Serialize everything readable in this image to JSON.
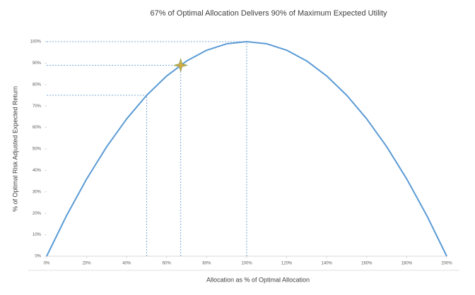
{
  "chart_data": {
    "type": "line",
    "title": "67% of Optimal Allocation Delivers 90% of Maximum Expected Utility",
    "x_label": "Allocation as % of Optimal Allocation",
    "y_label": "% of Optimal Risk Adjusted Expected Return",
    "x": [
      0,
      10,
      20,
      30,
      40,
      50,
      60,
      70,
      80,
      90,
      100,
      110,
      120,
      130,
      140,
      150,
      160,
      170,
      180,
      190,
      200
    ],
    "series": [
      {
        "color": "#5b9bd5",
        "values": [
          0,
          19,
          36,
          51,
          64,
          75,
          84,
          91,
          96,
          99,
          100,
          99,
          96,
          91,
          84,
          75,
          64,
          51,
          36,
          19,
          0
        ]
      }
    ],
    "reference_lines": [
      {
        "x": 50,
        "y": 75
      },
      {
        "x": 67,
        "y": 89
      },
      {
        "x": 100,
        "y": 100
      }
    ],
    "reference_color": "#7fa7d9",
    "highlight": {
      "x": 67,
      "y": 89,
      "color": "#d4a94a"
    },
    "xlim": [
      0,
      200
    ],
    "ylim": [
      0,
      100
    ],
    "xticks": [
      {
        "value": 0,
        "label": "0%"
      },
      {
        "value": 20,
        "label": "20%"
      },
      {
        "value": 40,
        "label": "40%"
      },
      {
        "value": 60,
        "label": "60%"
      },
      {
        "value": 80,
        "label": "80%"
      },
      {
        "value": 100,
        "label": "100%"
      },
      {
        "value": 120,
        "label": "120%"
      },
      {
        "value": 140,
        "label": "140%"
      },
      {
        "value": 160,
        "label": "160%"
      },
      {
        "value": 180,
        "label": "180%"
      },
      {
        "value": 200,
        "label": "200%"
      }
    ],
    "yticks": [
      {
        "value": 0,
        "label": "0%"
      },
      {
        "value": 10,
        "label": "10%"
      },
      {
        "value": 20,
        "label": "20%"
      },
      {
        "value": 30,
        "label": "30%"
      },
      {
        "value": 40,
        "label": "40%"
      },
      {
        "value": 50,
        "label": "50%"
      },
      {
        "value": 60,
        "label": "60%"
      },
      {
        "value": 70,
        "label": "70%"
      },
      {
        "value": 80,
        "label": "80%"
      },
      {
        "value": 90,
        "label": "90%"
      },
      {
        "value": 100,
        "label": "100%"
      }
    ]
  }
}
